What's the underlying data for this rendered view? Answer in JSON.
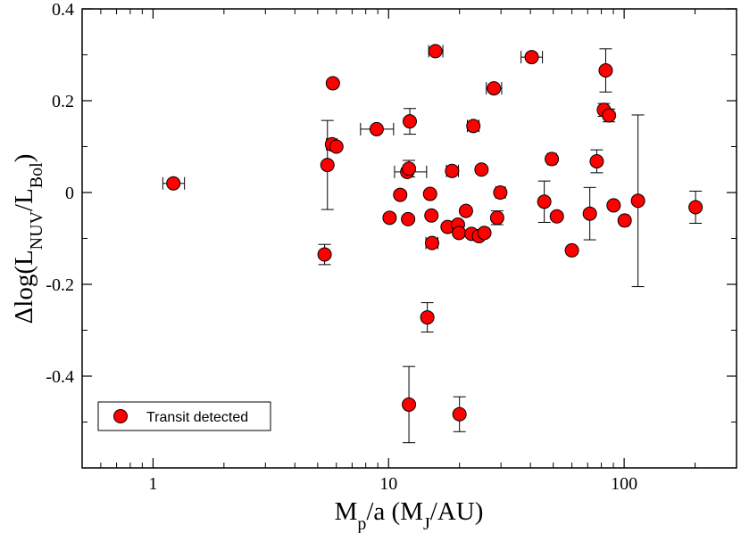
{
  "chart_data": {
    "type": "scatter",
    "title": "",
    "xlabel": "M_p/a (M_J/AU)",
    "xlabel_parts": {
      "main": "M",
      "sub1": "p",
      "mid": "/a (M",
      "sub2": "J",
      "end": "/AU)"
    },
    "ylabel": "Δlog(L_NUV/L_Bol)",
    "ylabel_parts": {
      "pre": "Δlog(L",
      "sub1": "NUV",
      "mid": "/L",
      "sub2": "Bol",
      "end": ")"
    },
    "xscale": "log",
    "xlim": [
      0.5,
      300
    ],
    "ylim": [
      -0.6,
      0.4
    ],
    "x_ticks": [
      1,
      10,
      100
    ],
    "x_tick_labels": [
      "1",
      "10",
      "100"
    ],
    "y_ticks": [
      0.4,
      0.2,
      0,
      -0.2,
      -0.4
    ],
    "y_tick_labels": [
      "0.4",
      "0.2",
      "0",
      "-0.2",
      "-0.4"
    ],
    "legend": {
      "label": "Transit detected",
      "position": "bottom-left"
    },
    "marker_color": "#ff0000",
    "series": [
      {
        "name": "Transit detected",
        "points": [
          {
            "x": 1.22,
            "y": 0.02,
            "xerr": [
              0.12,
              0.14
            ]
          },
          {
            "x": 5.35,
            "y": -0.135,
            "yerr": 0.022
          },
          {
            "x": 5.5,
            "y": 0.06,
            "yerr": 0.097
          },
          {
            "x": 5.75,
            "y": 0.105,
            "xerr": [
              0.3,
              0.3
            ]
          },
          {
            "x": 5.8,
            "y": 0.238
          },
          {
            "x": 6.0,
            "y": 0.1
          },
          {
            "x": 8.9,
            "y": 0.138,
            "xerr": [
              1.3,
              1.6
            ]
          },
          {
            "x": 10.1,
            "y": -0.055
          },
          {
            "x": 11.2,
            "y": -0.005
          },
          {
            "x": 12.0,
            "y": 0.045,
            "xerr": [
              1.4,
              2.5
            ]
          },
          {
            "x": 12.2,
            "y": 0.052,
            "yerr": 0.018
          },
          {
            "x": 12.1,
            "y": -0.058
          },
          {
            "x": 12.3,
            "y": 0.155,
            "yerr": 0.028
          },
          {
            "x": 12.2,
            "y": -0.462,
            "yerr": 0.083
          },
          {
            "x": 14.6,
            "y": -0.272,
            "yerr": 0.032
          },
          {
            "x": 15.0,
            "y": -0.003
          },
          {
            "x": 15.2,
            "y": -0.05
          },
          {
            "x": 15.3,
            "y": -0.11,
            "xerr": [
              0.9,
              0.9
            ]
          },
          {
            "x": 15.8,
            "y": 0.308,
            "xerr": [
              1.0,
              1.2
            ]
          },
          {
            "x": 17.8,
            "y": -0.075
          },
          {
            "x": 18.6,
            "y": 0.047,
            "xerr": [
              1.0,
              1.2
            ]
          },
          {
            "x": 19.7,
            "y": -0.07
          },
          {
            "x": 19.9,
            "y": -0.088
          },
          {
            "x": 20.0,
            "y": -0.483,
            "yerr": 0.038
          },
          {
            "x": 21.3,
            "y": -0.04
          },
          {
            "x": 22.5,
            "y": -0.09
          },
          {
            "x": 22.9,
            "y": 0.145,
            "xerr": [
              1.3,
              1.3
            ]
          },
          {
            "x": 24.2,
            "y": -0.095
          },
          {
            "x": 24.8,
            "y": 0.05
          },
          {
            "x": 25.5,
            "y": -0.088
          },
          {
            "x": 28.0,
            "y": 0.227,
            "xerr": [
              2.0,
              2.2
            ]
          },
          {
            "x": 28.9,
            "y": -0.055,
            "yerr": 0.015
          },
          {
            "x": 29.8,
            "y": 0.0,
            "xerr": [
              1.3,
              1.5
            ]
          },
          {
            "x": 40.5,
            "y": 0.295,
            "xerr": [
              4.0,
              4.5
            ]
          },
          {
            "x": 45.8,
            "y": -0.02,
            "yerr": 0.045
          },
          {
            "x": 49.3,
            "y": 0.073,
            "xerr": [
              2.0,
              2.2
            ]
          },
          {
            "x": 51.8,
            "y": -0.052
          },
          {
            "x": 60.0,
            "y": -0.126,
            "xerr": [
              2.0,
              2.0
            ]
          },
          {
            "x": 71.5,
            "y": -0.046,
            "yerr": 0.057
          },
          {
            "x": 76.5,
            "y": 0.068,
            "yerr": 0.025
          },
          {
            "x": 82.0,
            "y": 0.18,
            "yerr": 0.014
          },
          {
            "x": 83.5,
            "y": 0.266,
            "yerr": 0.047
          },
          {
            "x": 86.2,
            "y": 0.168,
            "yerr": 0.014
          },
          {
            "x": 90.2,
            "y": -0.028
          },
          {
            "x": 100.5,
            "y": -0.061,
            "xerr": [
              3.5,
              4.0
            ]
          },
          {
            "x": 114.5,
            "y": -0.018,
            "yerr": 0.187
          },
          {
            "x": 201.0,
            "y": -0.032,
            "yerr": 0.035
          }
        ]
      }
    ]
  }
}
